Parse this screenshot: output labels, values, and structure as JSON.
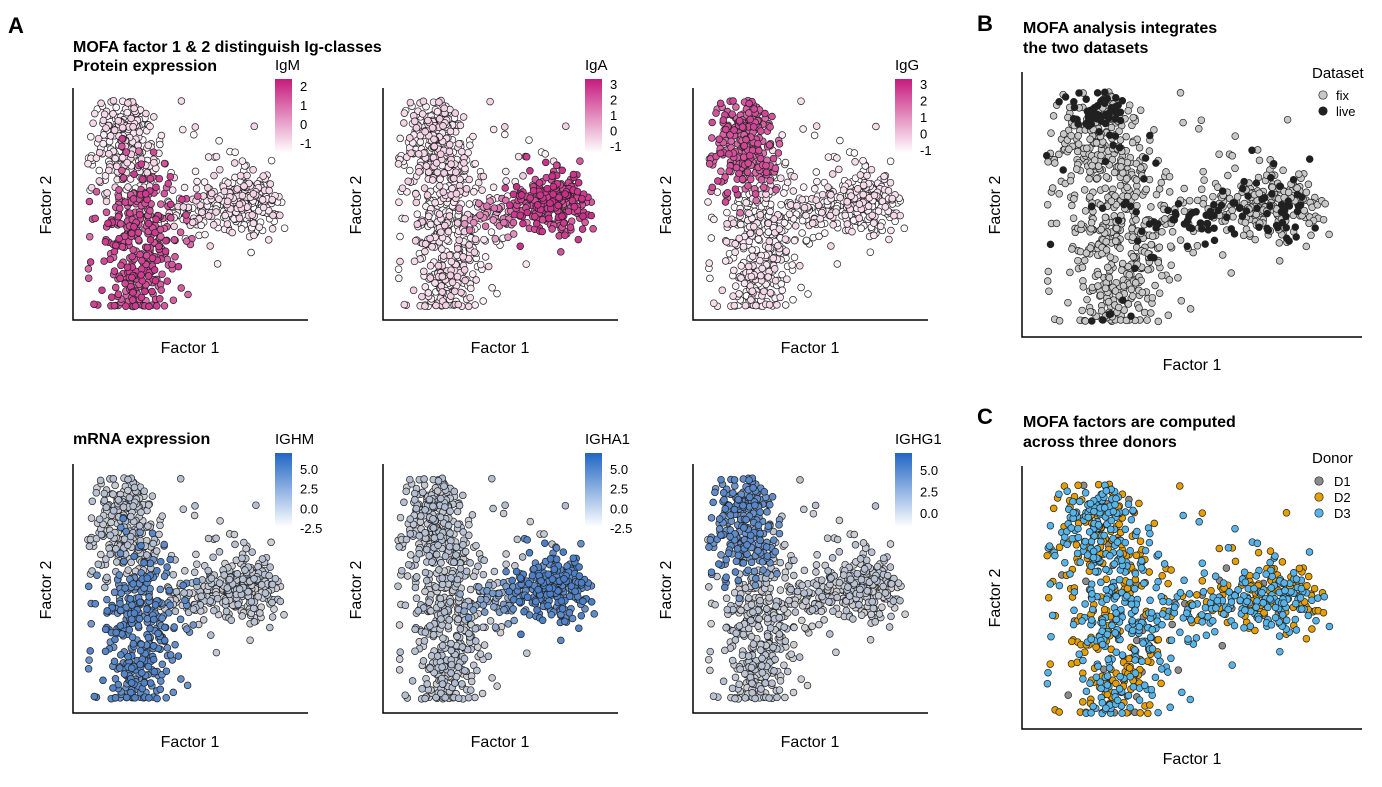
{
  "panel_letters": [
    "A",
    "B",
    "C"
  ],
  "colors": {
    "protein_high": "#c51b7d",
    "protein_low": "#ffffff",
    "mrna_high": "#2166c4",
    "mrna_low": "#ffffff",
    "fix": "#c8c8c8",
    "live": "#202020",
    "D1": "#8c8c8c",
    "D2": "#e69f00",
    "D3": "#56b4e9"
  },
  "chart_data": [
    {
      "id": "A-igm",
      "type": "scatter",
      "title": "MOFA factor 1 & 2 distinguish Ig-classes",
      "subtitle": "Protein expression",
      "xlabel": "Factor 1",
      "ylabel": "Factor 2",
      "color_by": "IgM",
      "palette": "protein",
      "pattern": "igm",
      "legend_title": "IgM",
      "legend_ticks": [
        "2",
        "1",
        "0",
        "-1"
      ]
    },
    {
      "id": "A-iga",
      "type": "scatter",
      "xlabel": "Factor 1",
      "ylabel": "Factor 2",
      "color_by": "IgA",
      "palette": "protein",
      "pattern": "iga",
      "legend_title": "IgA",
      "legend_ticks": [
        "3",
        "2",
        "1",
        "0",
        "-1"
      ]
    },
    {
      "id": "A-igg",
      "type": "scatter",
      "xlabel": "Factor 1",
      "ylabel": "Factor 2",
      "color_by": "IgG",
      "palette": "protein",
      "pattern": "igg",
      "legend_title": "IgG",
      "legend_ticks": [
        "3",
        "2",
        "1",
        "0",
        "-1"
      ]
    },
    {
      "id": "A-ighm",
      "type": "scatter",
      "subtitle": "mRNA expression",
      "xlabel": "Factor 1",
      "ylabel": "Factor 2",
      "color_by": "IGHM",
      "palette": "mrna",
      "pattern": "igm",
      "legend_title": "IGHM",
      "legend_ticks": [
        "5.0",
        "2.5",
        "0.0",
        "-2.5"
      ]
    },
    {
      "id": "A-igha1",
      "type": "scatter",
      "xlabel": "Factor 1",
      "ylabel": "Factor 2",
      "color_by": "IGHA1",
      "palette": "mrna",
      "pattern": "iga",
      "legend_title": "IGHA1",
      "legend_ticks": [
        "5.0",
        "2.5",
        "0.0",
        "-2.5"
      ]
    },
    {
      "id": "A-ighg1",
      "type": "scatter",
      "xlabel": "Factor 1",
      "ylabel": "Factor 2",
      "color_by": "IGHG1",
      "palette": "mrna",
      "pattern": "igg",
      "legend_title": "IGHG1",
      "legend_ticks": [
        "5.0",
        "2.5",
        "0.0"
      ]
    },
    {
      "id": "B",
      "type": "scatter",
      "title_lines": [
        "MOFA analysis integrates",
        "the two datasets"
      ],
      "xlabel": "Factor 1",
      "ylabel": "Factor 2",
      "color_by": "Dataset",
      "pattern": "dataset",
      "legend_title": "Dataset",
      "legend_entries": [
        "fix",
        "live"
      ],
      "legend_placement": "top-right"
    },
    {
      "id": "C",
      "type": "scatter",
      "title_lines": [
        "MOFA factors are computed",
        "across three donors"
      ],
      "xlabel": "Factor 1",
      "ylabel": "Factor 2",
      "color_by": "Donor",
      "pattern": "donor",
      "legend_title": "Donor",
      "legend_entries": [
        "D1",
        "D2",
        "D3"
      ],
      "legend_placement": "top-right"
    }
  ]
}
